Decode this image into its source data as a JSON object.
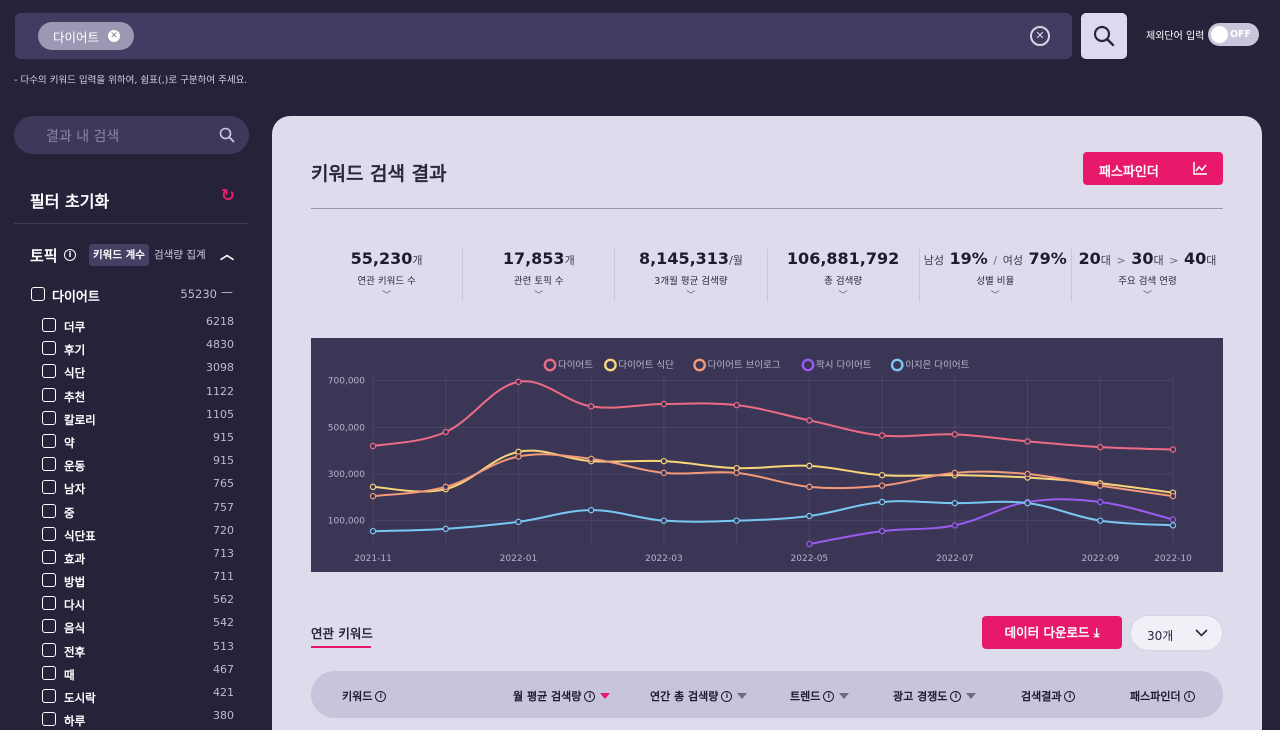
{
  "search": {
    "chip_label": "다이어트",
    "exclude_label": "제외단어 입력",
    "toggle_label": "OFF",
    "hint": "- 다수의 키워드 입력을 위하여, 쉼표(,)로 구분하여 주세요."
  },
  "sidebar": {
    "search_placeholder": "결과 내 검색",
    "reset_label": "필터 초기화",
    "topic_title": "토픽",
    "seg_keyword_count": "키워드 계수",
    "seg_search_total": "검색량 집계",
    "parent": {
      "label": "다이어트",
      "count": "55230"
    },
    "items": [
      {
        "label": "더쿠",
        "count": "6218"
      },
      {
        "label": "후기",
        "count": "4830"
      },
      {
        "label": "식단",
        "count": "3098"
      },
      {
        "label": "추천",
        "count": "1122"
      },
      {
        "label": "칼로리",
        "count": "1105"
      },
      {
        "label": "약",
        "count": "915"
      },
      {
        "label": "운동",
        "count": "915"
      },
      {
        "label": "남자",
        "count": "765"
      },
      {
        "label": "중",
        "count": "757"
      },
      {
        "label": "식단표",
        "count": "720"
      },
      {
        "label": "효과",
        "count": "713"
      },
      {
        "label": "방법",
        "count": "711"
      },
      {
        "label": "다시",
        "count": "562"
      },
      {
        "label": "음식",
        "count": "542"
      },
      {
        "label": "전후",
        "count": "513"
      },
      {
        "label": "때",
        "count": "467"
      },
      {
        "label": "도시락",
        "count": "421"
      },
      {
        "label": "하루",
        "count": "380"
      }
    ]
  },
  "main": {
    "title": "키워드 검색 결과",
    "pathfinder_label": "패스파인더",
    "stats": {
      "annual_keywords": {
        "value": "55,230",
        "unit": "개",
        "label": "연관 키워드 수"
      },
      "topics": {
        "value": "17,853",
        "unit": "개",
        "label": "관련 토픽 수"
      },
      "avg3m": {
        "value": "8,145,313",
        "unit": "/월",
        "label": "3개월 평균 검색량"
      },
      "total": {
        "value": "106,881,792",
        "label": "총 검색량"
      },
      "gender": {
        "male_label": "남성",
        "male": "19%",
        "sep": "/",
        "female_label": "여성",
        "female": "79%",
        "label": "성별 비율"
      },
      "age": {
        "a1": "20",
        "a2": "30",
        "a3": "40",
        "unit": "대",
        "label": "주요 검색 연령"
      }
    },
    "related_tab": "연관 키워드",
    "download_label": "데이터 다운로드",
    "count_select": "30개",
    "table_headers": {
      "keyword": "키워드",
      "monthly": "월 평균 검색량",
      "annual": "연간 총 검색량",
      "trend": "트렌드",
      "competition": "광고 경쟁도",
      "results": "검색결과",
      "pathfinder": "패스파인더"
    }
  },
  "chart_data": {
    "type": "line",
    "x": [
      "2021-11",
      "2021-12",
      "2022-01",
      "2022-02",
      "2022-03",
      "2022-04",
      "2022-05",
      "2022-06",
      "2022-07",
      "2022-08",
      "2022-09",
      "2022-10"
    ],
    "x_tick_labels": [
      "2021-11",
      "2022-01",
      "2022-03",
      "2022-05",
      "2022-07",
      "2022-09",
      "2022-10"
    ],
    "y_tick_labels": [
      "700,000",
      "500,000",
      "300,000",
      "100,000"
    ],
    "y_ticks": [
      700000,
      500000,
      300000,
      100000
    ],
    "ylim": [
      0,
      720000
    ],
    "legend_position": "top",
    "grid": true,
    "series": [
      {
        "name": "다이어트",
        "color": "#ee6b84",
        "values": [
          420000,
          480000,
          695000,
          590000,
          600000,
          595000,
          530000,
          465000,
          470000,
          440000,
          415000,
          405000
        ]
      },
      {
        "name": "다이어트 식단",
        "color": "#f7d67a",
        "values": [
          245000,
          235000,
          395000,
          355000,
          355000,
          325000,
          335000,
          295000,
          295000,
          285000,
          260000,
          220000
        ]
      },
      {
        "name": "다이어트 브이로그",
        "color": "#f39a7a",
        "values": [
          205000,
          245000,
          375000,
          365000,
          305000,
          305000,
          245000,
          250000,
          305000,
          300000,
          250000,
          205000
        ]
      },
      {
        "name": "팍시 다이어트",
        "color": "#9a5cf0",
        "values": [
          null,
          null,
          null,
          null,
          null,
          null,
          0,
          55000,
          80000,
          180000,
          180000,
          105000
        ]
      },
      {
        "name": "이지은 다이어트",
        "color": "#78c8f2",
        "values": [
          55000,
          65000,
          95000,
          145000,
          100000,
          100000,
          120000,
          180000,
          175000,
          175000,
          100000,
          80000
        ]
      }
    ]
  }
}
